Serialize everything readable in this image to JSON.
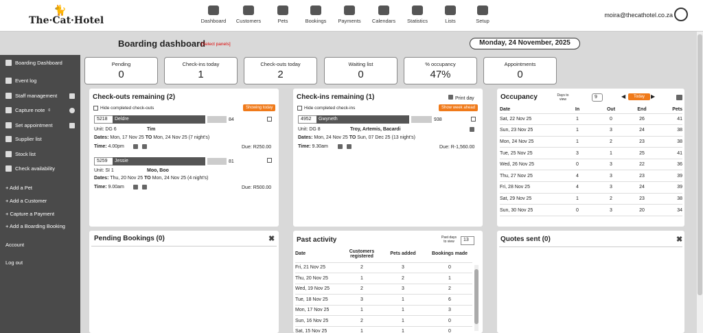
{
  "brand": {
    "logo_text": "The·Cat·Hotel"
  },
  "nav": [
    {
      "label": "Dashboard"
    },
    {
      "label": "Customers"
    },
    {
      "label": "Pets"
    },
    {
      "label": "Bookings"
    },
    {
      "label": "Payments"
    },
    {
      "label": "Calendars"
    },
    {
      "label": "Statistics"
    },
    {
      "label": "Lists"
    },
    {
      "label": "Setup"
    }
  ],
  "user": {
    "email": "moira@thecathotel.co.za"
  },
  "sidebar": {
    "items": [
      {
        "label": "Boarding Dashboard"
      },
      {
        "label": "Event log"
      },
      {
        "label": "Staff management"
      },
      {
        "label": "Capture note",
        "badge": "0"
      },
      {
        "label": "Set appointment"
      },
      {
        "label": "Supplier list"
      },
      {
        "label": "Stock list"
      },
      {
        "label": "Check availability"
      },
      {
        "label": "+ Add a Pet"
      },
      {
        "label": "+ Add a Customer"
      },
      {
        "label": "+ Capture a Payment"
      },
      {
        "label": "+ Add a Boarding Booking"
      },
      {
        "label": "Account"
      },
      {
        "label": "Log out"
      }
    ]
  },
  "page": {
    "title": "Boarding dashboard",
    "select_panels": "[Select panels]",
    "date": "Monday, 24 November, 2025"
  },
  "stats": [
    {
      "label": "Pending",
      "value": "0"
    },
    {
      "label": "Check-ins today",
      "value": "1"
    },
    {
      "label": "Check-outs today",
      "value": "2"
    },
    {
      "label": "Waiting list",
      "value": "0"
    },
    {
      "label": "% occupancy",
      "value": "47%"
    },
    {
      "label": "Appointments",
      "value": "0"
    }
  ],
  "checkouts": {
    "title": "Check-outs remaining (2)",
    "hide_label": "Hide completed check-outs",
    "button": "Showing today",
    "records": [
      {
        "id": "5218",
        "name": "Deldre",
        "phone_tail": "84",
        "unit": "Unit: DG 6",
        "pets": "Tim",
        "dates_label": "Dates:",
        "dates": "Mon, 17 Nov 25",
        "to": "TO",
        "dates_end": "Mon, 24 Nov 25 (7 night's)",
        "time_label": "Time:",
        "time": "4.00pm",
        "due": "Due: R250.00"
      },
      {
        "id": "5259",
        "name": "Jessie",
        "phone_tail": "81",
        "unit": "Unit: SI 1",
        "pets": "Moo, Boo",
        "dates_label": "Dates:",
        "dates": "Thu, 20 Nov 25",
        "to": "TO",
        "dates_end": "Mon, 24 Nov 25 (4 night's)",
        "time_label": "Time:",
        "time": "9.00am",
        "due": "Due: R500.00"
      }
    ]
  },
  "checkins": {
    "title": "Check-ins remaining (1)",
    "print": "Print day",
    "hide_label": "Hide completed check-ins",
    "button": "Show week ahead",
    "records": [
      {
        "id": "4952",
        "name": "Gwyneth",
        "phone_tail": "938",
        "unit": "Unit: DG 8",
        "pets": "Troy, Artemis, Bacardi",
        "dates_label": "Dates:",
        "dates": "Mon, 24 Nov 25",
        "to": "TO",
        "dates_end": "Sun, 07 Dec 25 (13 night's)",
        "time_label": "Time:",
        "time": "9.30am",
        "due": "Due: R-1,560.00"
      }
    ]
  },
  "occupancy": {
    "title": "Occupancy",
    "days_label": "Days to view",
    "days": "9",
    "today": "Today",
    "headers": [
      "Date",
      "In",
      "Out",
      "End",
      "Pets"
    ],
    "rows": [
      [
        "Sat, 22 Nov 25",
        "1",
        "0",
        "26",
        "41"
      ],
      [
        "Sun, 23 Nov 25",
        "1",
        "3",
        "24",
        "38"
      ],
      [
        "Mon, 24 Nov 25",
        "1",
        "2",
        "23",
        "38"
      ],
      [
        "Tue, 25 Nov 25",
        "3",
        "1",
        "25",
        "41"
      ],
      [
        "Wed, 26 Nov 25",
        "0",
        "3",
        "22",
        "36"
      ],
      [
        "Thu, 27 Nov 25",
        "4",
        "3",
        "23",
        "39"
      ],
      [
        "Fri, 28 Nov 25",
        "4",
        "3",
        "24",
        "39"
      ],
      [
        "Sat, 29 Nov 25",
        "1",
        "2",
        "23",
        "38"
      ],
      [
        "Sun, 30 Nov 25",
        "0",
        "3",
        "20",
        "34"
      ]
    ]
  },
  "pending": {
    "title": "Pending Bookings (0)"
  },
  "activity": {
    "title": "Past activity",
    "days_label": "Past days to view",
    "days": "13",
    "headers": [
      "Date",
      "Customers registered",
      "Pets added",
      "Bookings made"
    ],
    "rows": [
      [
        "Fri, 21 Nov 25",
        "2",
        "3",
        "0"
      ],
      [
        "Thu, 20 Nov 25",
        "1",
        "2",
        "1"
      ],
      [
        "Wed, 19 Nov 25",
        "2",
        "3",
        "2"
      ],
      [
        "Tue, 18 Nov 25",
        "3",
        "1",
        "6"
      ],
      [
        "Mon, 17 Nov 25",
        "1",
        "1",
        "3"
      ],
      [
        "Sun, 16 Nov 25",
        "2",
        "1",
        "0"
      ],
      [
        "Sat, 15 Nov 25",
        "1",
        "1",
        "0"
      ]
    ]
  },
  "quotes": {
    "title": "Quotes sent (0)"
  }
}
